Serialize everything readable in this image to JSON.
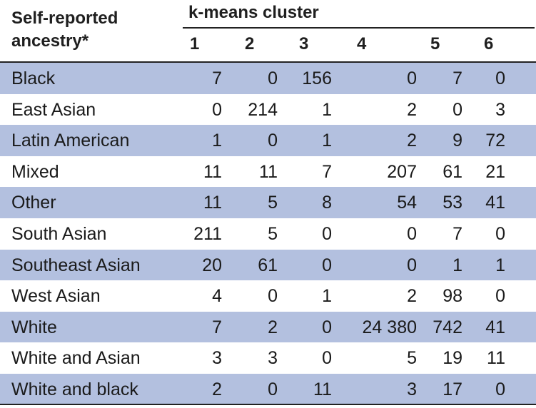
{
  "table": {
    "row_header": "Self-reported ancestry*",
    "row_header_line1": "Self-reported",
    "row_header_line2": "ancestry*",
    "group_header": "k-means cluster",
    "columns": [
      "1",
      "2",
      "3",
      "4",
      "5",
      "6"
    ],
    "rows": [
      {
        "label": "Black",
        "values": [
          "7",
          "0",
          "156",
          "0",
          "7",
          "0"
        ]
      },
      {
        "label": "East Asian",
        "values": [
          "0",
          "214",
          "1",
          "2",
          "0",
          "3"
        ]
      },
      {
        "label": "Latin American",
        "values": [
          "1",
          "0",
          "1",
          "2",
          "9",
          "72"
        ]
      },
      {
        "label": "Mixed",
        "values": [
          "11",
          "11",
          "7",
          "207",
          "61",
          "21"
        ]
      },
      {
        "label": "Other",
        "values": [
          "11",
          "5",
          "8",
          "54",
          "53",
          "41"
        ]
      },
      {
        "label": "South Asian",
        "values": [
          "211",
          "5",
          "0",
          "0",
          "7",
          "0"
        ]
      },
      {
        "label": "Southeast Asian",
        "values": [
          "20",
          "61",
          "0",
          "0",
          "1",
          "1"
        ]
      },
      {
        "label": "West Asian",
        "values": [
          "4",
          "0",
          "1",
          "2",
          "98",
          "0"
        ]
      },
      {
        "label": "White",
        "values": [
          "7",
          "2",
          "0",
          "24 380",
          "742",
          "41"
        ]
      },
      {
        "label": "White and Asian",
        "values": [
          "3",
          "3",
          "0",
          "5",
          "19",
          "11"
        ]
      },
      {
        "label": "White and black",
        "values": [
          "2",
          "0",
          "11",
          "3",
          "17",
          "0"
        ]
      }
    ],
    "colors": {
      "shaded_row": "#b3c0df",
      "rule": "#222222"
    }
  }
}
